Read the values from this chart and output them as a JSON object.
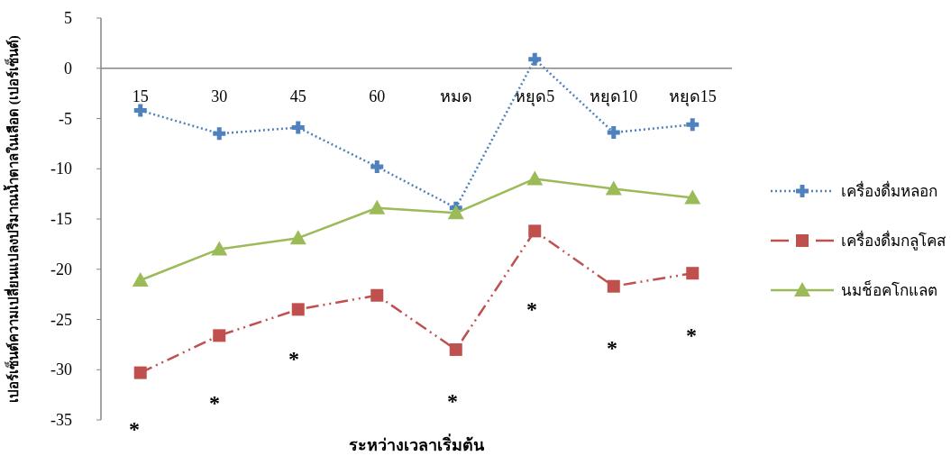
{
  "chart_data": {
    "type": "line",
    "xlabel": "ระหว่างเวลาเริ่มต้น",
    "ylabel": "เปอร์เซ็นต์ความเปลี่ยนแปลงปริมาณน้ำตาลในเลือด (เปอร์เซ็นต์)",
    "categories": [
      "15",
      "30",
      "45",
      "60",
      "หมด",
      "หยุด5",
      "หยุด10",
      "หยุด15"
    ],
    "series": [
      {
        "name": "เครื่องดื่มหลอก",
        "color": "#4f81bd",
        "marker": "cross",
        "line_style": "dotted",
        "values": [
          -4.2,
          -6.5,
          -5.9,
          -9.8,
          -13.9,
          0.9,
          -6.4,
          -5.6
        ]
      },
      {
        "name": "เครื่องดื่มกลูโคส",
        "color": "#c0504d",
        "marker": "square",
        "line_style": "dashed",
        "values": [
          -30.3,
          -26.6,
          -24.0,
          -22.6,
          -28.0,
          -16.2,
          -21.7,
          -20.4
        ]
      },
      {
        "name": "นมช็อคโกแลต",
        "color": "#9bbb59",
        "marker": "triangle",
        "line_style": "solid",
        "values": [
          -21.1,
          -18.0,
          -16.9,
          -13.9,
          -14.4,
          -11.0,
          -12.0,
          -12.9
        ]
      }
    ],
    "annotations": [
      "*",
      "*",
      "*",
      "*",
      "*",
      "*",
      "*"
    ],
    "ylim": [
      -35,
      5
    ],
    "yticks": [
      5,
      0,
      -5,
      -10,
      -15,
      -20,
      -25,
      -30,
      -35
    ],
    "grid": false,
    "legend": "right"
  }
}
